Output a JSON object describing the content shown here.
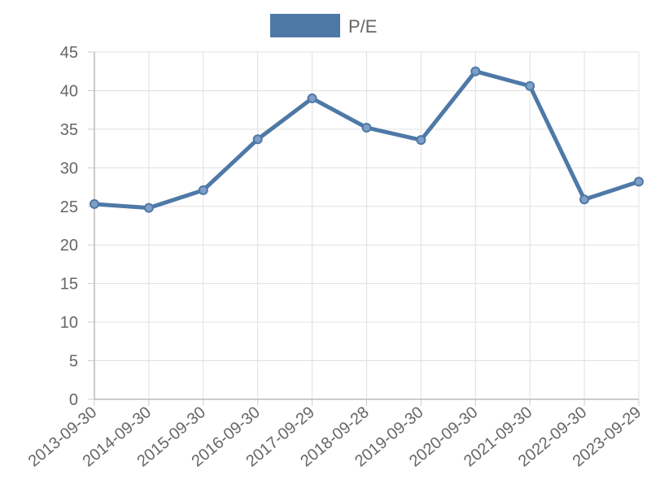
{
  "chart_data": {
    "type": "line",
    "title": "",
    "xlabel": "",
    "ylabel": "",
    "legend_position": "top",
    "grid": true,
    "ylim": [
      0,
      45
    ],
    "y_ticks": [
      "0",
      "5",
      "10",
      "15",
      "20",
      "25",
      "30",
      "35",
      "40",
      "45"
    ],
    "categories": [
      "2013-09-30",
      "2014-09-30",
      "2015-09-30",
      "2016-09-30",
      "2017-09-29",
      "2018-09-28",
      "2019-09-30",
      "2020-09-30",
      "2021-09-30",
      "2022-09-30",
      "2023-09-29"
    ],
    "series": [
      {
        "name": "P/E",
        "color": "#4e79a7",
        "values": [
          25.3,
          24.8,
          27.1,
          33.7,
          39.0,
          35.2,
          33.6,
          42.5,
          40.6,
          25.9,
          28.2
        ]
      }
    ]
  }
}
